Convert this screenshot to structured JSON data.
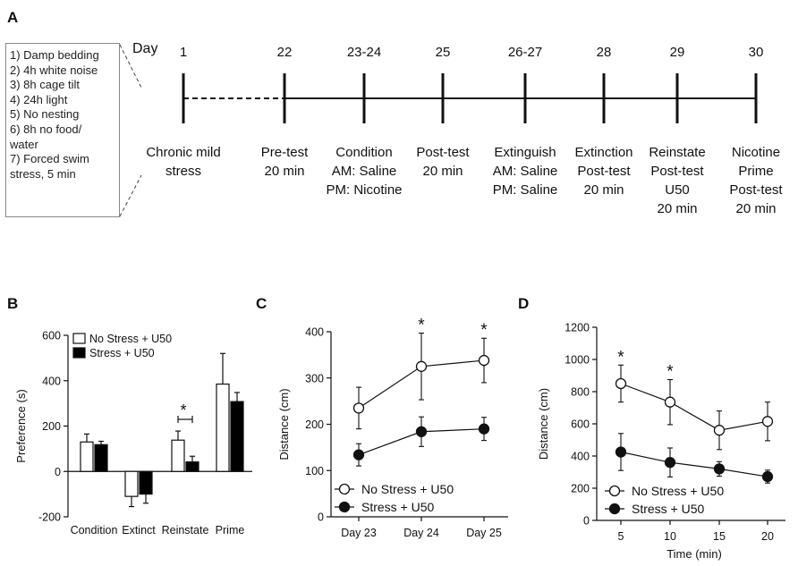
{
  "panel_a": {
    "letter": "A",
    "day_label": "Day",
    "stress_list": [
      "1) Damp bedding",
      "2) 4h white noise",
      "3) 8h cage tilt",
      "4) 24h light",
      "5) No nesting",
      "6) 8h no food/",
      "water",
      "7) Forced swim",
      "stress, 5 min"
    ],
    "timeline": [
      {
        "day": "1",
        "lines": [
          "Chronic mild",
          "stress"
        ]
      },
      {
        "day": "22",
        "lines": [
          "Pre-test",
          "20 min"
        ]
      },
      {
        "day": "23-24",
        "lines": [
          "Condition",
          "AM: Saline",
          "PM: Nicotine"
        ]
      },
      {
        "day": "25",
        "lines": [
          "Post-test",
          "20 min"
        ]
      },
      {
        "day": "26-27",
        "lines": [
          "Extinguish",
          "AM: Saline",
          "PM: Saline"
        ]
      },
      {
        "day": "28",
        "lines": [
          "Extinction",
          "Post-test",
          "20 min"
        ]
      },
      {
        "day": "29",
        "lines": [
          "Reinstate",
          "Post-test",
          "U50",
          "20 min"
        ]
      },
      {
        "day": "30",
        "lines": [
          "Nicotine",
          "Prime",
          "Post-test",
          "20 min"
        ]
      }
    ]
  },
  "chart_data": [
    {
      "panel": "B",
      "type": "bar",
      "ylabel": "Preference (s)",
      "ylim": [
        -200,
        600
      ],
      "yticks": [
        -200,
        0,
        200,
        400,
        600
      ],
      "categories": [
        "Condition",
        "Extinct",
        "Reinstate",
        "Prime"
      ],
      "series": [
        {
          "name": "No Stress + U50",
          "fill": "#ffffff",
          "values": [
            130,
            -110,
            138,
            385
          ],
          "errors": [
            35,
            45,
            40,
            135
          ]
        },
        {
          "name": "Stress + U50",
          "fill": "#000000",
          "values": [
            118,
            -100,
            42,
            308
          ],
          "errors": [
            15,
            40,
            25,
            40
          ]
        }
      ],
      "significance": [
        {
          "category": "Reinstate",
          "label": "*"
        }
      ],
      "legend": "top-left"
    },
    {
      "panel": "C",
      "type": "line",
      "ylabel": "Distance (cm)",
      "ylim": [
        0,
        400
      ],
      "yticks": [
        0,
        100,
        200,
        300,
        400
      ],
      "categories": [
        "Day 23",
        "Day 24",
        "Day 25"
      ],
      "series": [
        {
          "name": "No Stress + U50",
          "marker": "open-circle",
          "values": [
            235,
            325,
            338
          ],
          "errors": [
            45,
            72,
            48
          ]
        },
        {
          "name": "Stress + U50",
          "marker": "filled-circle",
          "values": [
            134,
            184,
            190
          ],
          "errors": [
            24,
            32,
            25
          ]
        }
      ],
      "significance": [
        {
          "category": "Day 24",
          "label": "*"
        },
        {
          "category": "Day 25",
          "label": "*"
        }
      ],
      "legend": "bottom-left"
    },
    {
      "panel": "D",
      "type": "line",
      "xlabel": "Time (min)",
      "ylabel": "Distance (cm)",
      "ylim": [
        0,
        1200
      ],
      "yticks": [
        0,
        200,
        400,
        600,
        800,
        1000,
        1200
      ],
      "x": [
        5,
        10,
        15,
        20
      ],
      "series": [
        {
          "name": "No Stress + U50",
          "marker": "open-circle",
          "values": [
            850,
            735,
            560,
            615
          ],
          "errors": [
            115,
            140,
            120,
            120
          ]
        },
        {
          "name": "Stress + U50",
          "marker": "filled-circle",
          "values": [
            425,
            360,
            320,
            272
          ],
          "errors": [
            115,
            90,
            45,
            40
          ]
        }
      ],
      "significance": [
        {
          "x": 5,
          "label": "*"
        },
        {
          "x": 10,
          "label": "*"
        }
      ],
      "legend": "bottom-left"
    }
  ]
}
